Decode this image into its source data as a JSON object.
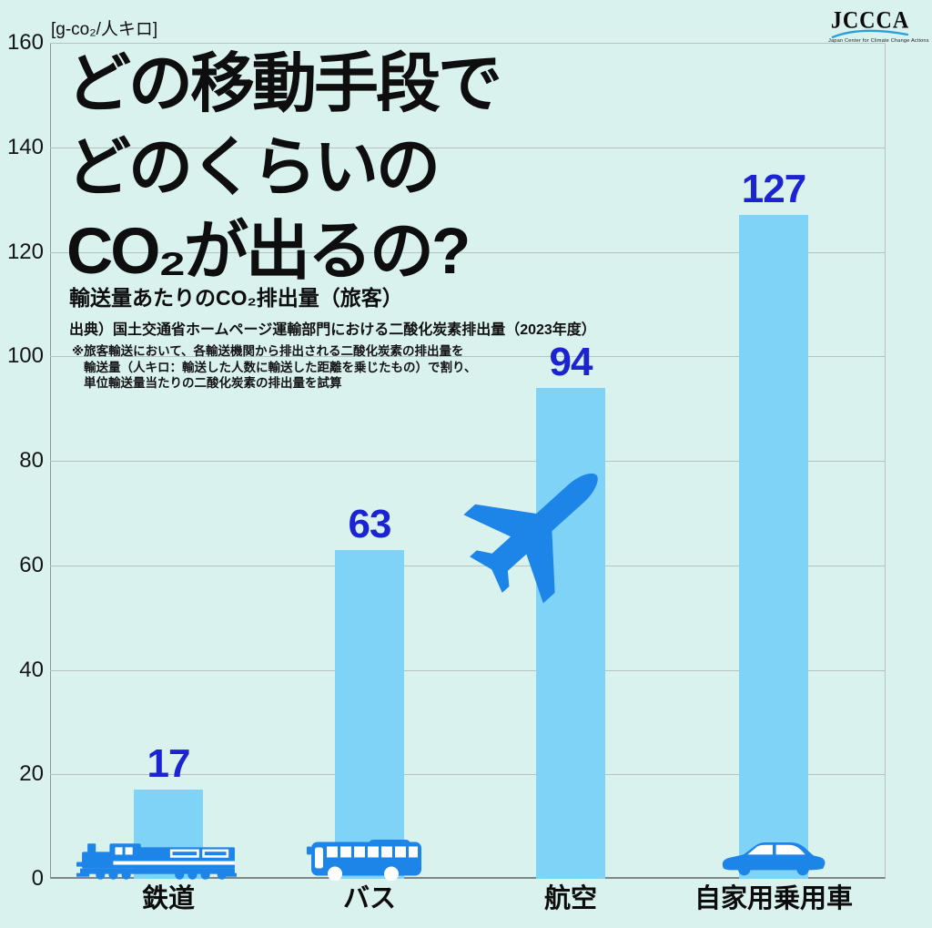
{
  "colors": {
    "background": "#d9f2ee",
    "bar": "#7fd3f7",
    "icon_blue": "#1d85e8",
    "value_label": "#1c23d0",
    "title_text": "#0e0e0e",
    "grid_line": "#b7c3c1",
    "axis_line": "#8f9898",
    "logo_arc": "#2b9fd8"
  },
  "logo": {
    "text": "JCCCA",
    "tagline": "Japan Center for Climate Change Actions"
  },
  "header": {
    "unit_label": "[g-co₂/人キロ]",
    "title_lines": [
      "どの移動手段で",
      "どのくらいの",
      "CO₂が出るの?"
    ],
    "subtitle": "輸送量あたりのCO₂排出量（旅客）",
    "source": "出典）国土交通省ホームページ運輸部門における二酸化炭素排出量（2023年度）",
    "note_lines": [
      "※旅客輸送において、各輸送機関から排出される二酸化炭素の排出量を",
      "輸送量（人キロ：輸送した人数に輸送した距離を乗じたもの）で割り、",
      "単位輸送量当たりの二酸化炭素の排出量を試算"
    ]
  },
  "icons": [
    "train-icon",
    "bus-icon",
    "airplane-icon",
    "car-icon"
  ],
  "chart_data": {
    "type": "bar",
    "categories": [
      "鉄道",
      "バス",
      "航空",
      "自家用乗用車"
    ],
    "values": [
      17,
      63,
      94,
      127
    ],
    "title": "どの移動手段でどのくらいのCO₂が出るの?",
    "subtitle": "輸送量あたりのCO₂排出量（旅客）",
    "xlabel": "",
    "ylabel": "[g-co₂/人キロ]",
    "ylim": [
      0,
      160
    ],
    "ytick_interval": 20,
    "yticks": [
      0,
      20,
      40,
      60,
      80,
      100,
      120,
      140,
      160
    ],
    "grid": true,
    "legend_position": "none"
  }
}
